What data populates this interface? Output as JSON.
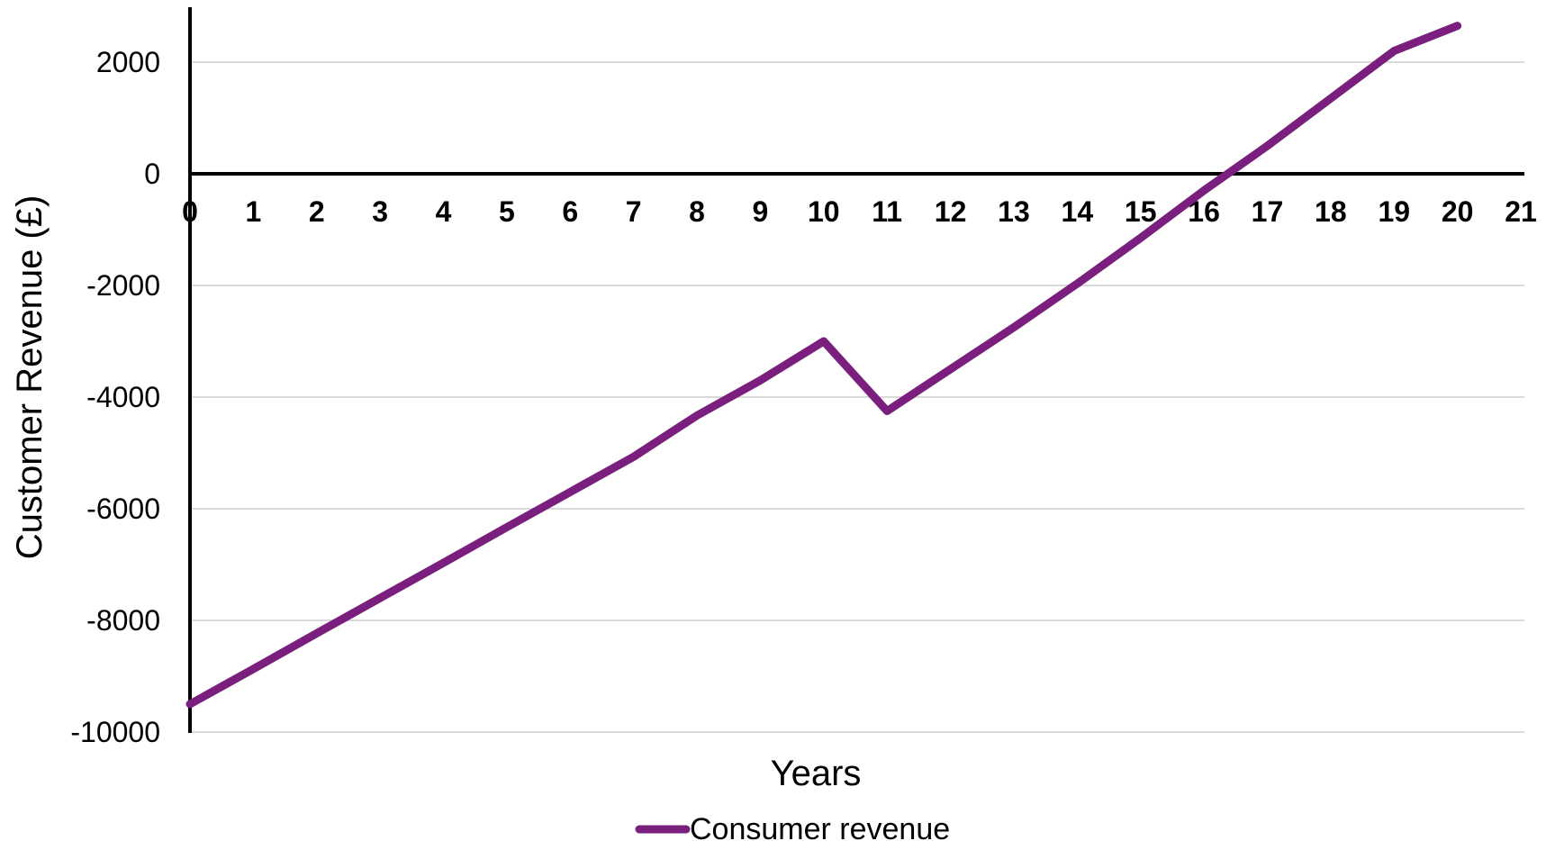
{
  "chart_data": {
    "type": "line",
    "xlabel": "Years",
    "ylabel": "Customer Revenue (£)",
    "xlim": [
      0,
      21
    ],
    "ylim": [
      -10000,
      3000
    ],
    "x_ticks": [
      0,
      1,
      2,
      3,
      4,
      5,
      6,
      7,
      8,
      9,
      10,
      11,
      12,
      13,
      14,
      15,
      16,
      17,
      18,
      19,
      20,
      21
    ],
    "y_ticks": [
      -10000,
      -8000,
      -6000,
      -4000,
      -2000,
      0,
      2000
    ],
    "grid": "horizontal",
    "legend_position": "bottom",
    "x_tick_position": "at zero line",
    "series": [
      {
        "name": "Consumer revenue",
        "color": "#7b1f7f",
        "x": [
          0,
          1,
          2,
          3,
          4,
          5,
          6,
          7,
          8,
          9,
          10,
          11,
          12,
          13,
          14,
          15,
          16,
          17,
          18,
          19,
          20
        ],
        "y": [
          -9500,
          -8870,
          -8230,
          -7600,
          -6970,
          -6330,
          -5700,
          -5070,
          -4330,
          -3700,
          -3000,
          -4250,
          -3500,
          -2750,
          -1970,
          -1150,
          -300,
          500,
          1350,
          2200,
          2650
        ]
      }
    ]
  }
}
